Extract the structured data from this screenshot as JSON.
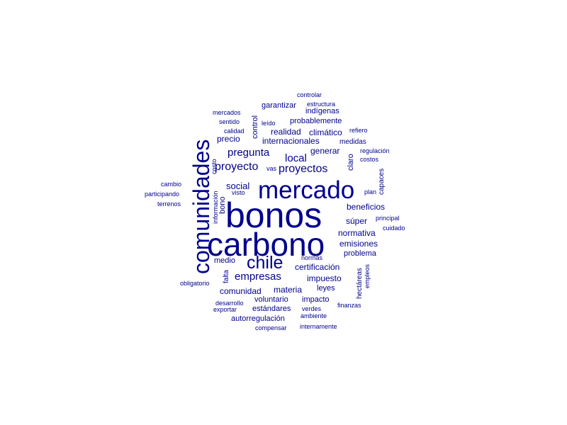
{
  "word_color": "#00008b",
  "background": "#ffffff",
  "words": [
    "bonos",
    "carbono",
    "comunidades",
    "mercado",
    "chile",
    "proyectos",
    "proyecto",
    "pregunta",
    "empresas",
    "local",
    "social",
    "generar",
    "internacionales",
    "realidad",
    "climático",
    "beneficios",
    "normativa",
    "emisiones",
    "súper",
    "problema",
    "certificación",
    "impuesto",
    "materia",
    "comunidad",
    "leyes",
    "medio",
    "impacto",
    "voluntario",
    "estándares",
    "autorregulación",
    "garantizar",
    "probablemente",
    "indígenas",
    "precio",
    "medidas",
    "controlar",
    "estructura",
    "mercados",
    "sentido",
    "calidad",
    "leído",
    "refiero",
    "regulación",
    "costos",
    "control",
    "claro",
    "capaces",
    "costo",
    "vas",
    "cambio",
    "participando",
    "terrenos",
    "visto",
    "plan",
    "información",
    "bono",
    "principal",
    "cuidado",
    "falta",
    "normas",
    "hectáreas",
    "empleos",
    "obligatorio",
    "desarrollo",
    "exportar",
    "verdes",
    "finanzas",
    "ambiente",
    "compensar",
    "internamente"
  ]
}
